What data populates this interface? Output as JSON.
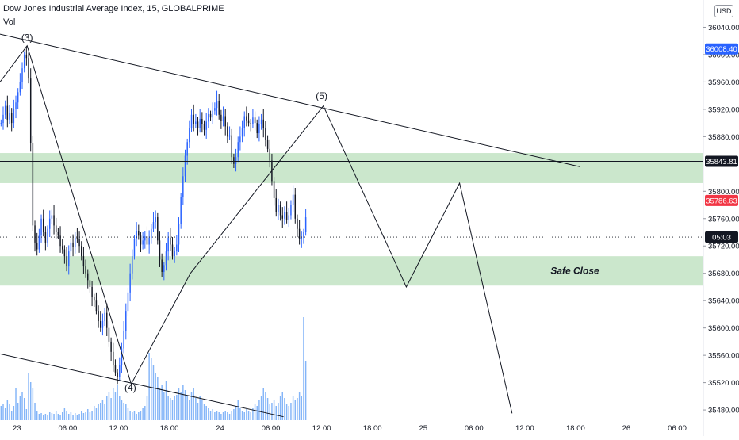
{
  "header": {
    "title": "Dow Jones Industrial Average Index, 15, GLOBALPRIME",
    "volume_label": "Vol",
    "currency_button": "USD"
  },
  "chart_data": {
    "type": "candlestick",
    "price_axis": {
      "ticks": [
        36040,
        36000,
        35960,
        35920,
        35880,
        35800,
        35760,
        35720,
        35680,
        35640,
        35600,
        35560,
        35520,
        35480
      ],
      "tick_labels": [
        "36040.00",
        "36000.00",
        "35960.00",
        "35920.00",
        "35880.00",
        "35800.00",
        "35760.00",
        "35720.00",
        "35680.00",
        "35640.00",
        "35600.00",
        "35560.00",
        "35520.00",
        "35480.00"
      ],
      "range": [
        35465,
        36080
      ]
    },
    "time_axis": {
      "labels": [
        "23",
        "06:00",
        "12:00",
        "18:00",
        "24",
        "06:00",
        "12:00",
        "18:00",
        "25",
        "06:00",
        "12:00",
        "18:00",
        "26",
        "06:00"
      ],
      "label_hours": [
        0,
        6,
        12,
        18,
        24,
        30,
        36,
        42,
        48,
        54,
        60,
        66,
        72,
        78
      ],
      "range_hours": [
        -2,
        81
      ]
    },
    "price_badges": [
      {
        "label": "36008.40",
        "price": 36008.4,
        "color": "#2962ff"
      },
      {
        "label": "35843.81",
        "price": 35843.81,
        "color": "#131722"
      },
      {
        "label": "35786.63",
        "price": 35786.63,
        "color": "#f23645"
      },
      {
        "label": "05:03",
        "price": 35733,
        "color": "#131722"
      }
    ],
    "horizontal_line": {
      "price": 35843.81
    },
    "dotted_line": {
      "price": 35733
    },
    "zones": [
      {
        "top": 35856,
        "bottom": 35812,
        "color": "#c8e6c9",
        "label": ""
      },
      {
        "top": 35705,
        "bottom": 35662,
        "color": "#c8e6c9",
        "label": "Safe Close"
      }
    ],
    "wave_labels": [
      {
        "text": "(3)",
        "hour": 1.2,
        "price": 36020
      },
      {
        "text": "(5)",
        "hour": 36.0,
        "price": 35935
      },
      {
        "text": "(4)",
        "hour": 13.4,
        "price": 35508
      }
    ],
    "trendlines": [
      {
        "points": [
          [
            -2,
            36030
          ],
          [
            66.5,
            35836
          ]
        ]
      },
      {
        "points": [
          [
            -2,
            35562
          ],
          [
            31.5,
            35470
          ]
        ]
      }
    ],
    "wave_path": {
      "points": [
        [
          -2,
          35960
        ],
        [
          1.2,
          36013
        ],
        [
          13.5,
          35518
        ],
        [
          20.5,
          35680
        ],
        [
          36.2,
          35925
        ],
        [
          44.0,
          35715
        ],
        [
          46.0,
          35660
        ],
        [
          52.3,
          35812
        ],
        [
          58.5,
          35475
        ]
      ]
    },
    "price_series": {
      "start_hour": -2,
      "step_hours": 0.25,
      "close": [
        35900,
        35912,
        35925,
        35905,
        35915,
        35900,
        35920,
        35930,
        35945,
        35960,
        35980,
        36000,
        35995,
        35965,
        35870,
        35750,
        35725,
        35715,
        35735,
        35760,
        35740,
        35725,
        35745,
        35760,
        35765,
        35750,
        35740,
        35735,
        35720,
        35715,
        35705,
        35690,
        35712,
        35725,
        35718,
        35732,
        35730,
        35720,
        35705,
        35690,
        35680,
        35670,
        35660,
        35645,
        35640,
        35625,
        35610,
        35600,
        35610,
        35622,
        35600,
        35580,
        35565,
        35545,
        35535,
        35528,
        35545,
        35570,
        35595,
        35625,
        35652,
        35680,
        35705,
        35730,
        35742,
        35735,
        35722,
        35728,
        35734,
        35722,
        35732,
        35745,
        35755,
        35762,
        35728,
        35700,
        35682,
        35692,
        35712,
        35732,
        35722,
        35705,
        35712,
        35722,
        35752,
        35792,
        35822,
        35852,
        35872,
        35892,
        35912,
        35898,
        35902,
        35893,
        35906,
        35898,
        35890,
        35902,
        35913,
        35908,
        35918,
        35922,
        35932,
        35912,
        35903,
        35910,
        35895,
        35880,
        35882,
        35850,
        35840,
        35850,
        35872,
        35880,
        35893,
        35910,
        35904,
        35900,
        35898,
        35908,
        35900,
        35885,
        35898,
        35905,
        35892,
        35875,
        35862,
        35845,
        35815,
        35790,
        35770,
        35780,
        35765,
        35760,
        35770,
        35758,
        35765,
        35780,
        35795,
        35760,
        35745,
        35730,
        35732,
        35740,
        35762
      ]
    },
    "volume_series": {
      "values": [
        18,
        20,
        15,
        25,
        20,
        12,
        18,
        40,
        22,
        30,
        35,
        28,
        14,
        60,
        48,
        40,
        22,
        12,
        8,
        9,
        6,
        8,
        7,
        10,
        9,
        8,
        12,
        8,
        7,
        10,
        15,
        12,
        8,
        10,
        6,
        9,
        7,
        8,
        12,
        9,
        10,
        14,
        10,
        12,
        18,
        15,
        20,
        22,
        25,
        20,
        30,
        35,
        28,
        40,
        35,
        45,
        30,
        25,
        22,
        20,
        15,
        12,
        10,
        12,
        8,
        10,
        12,
        15,
        18,
        30,
        85,
        78,
        70,
        60,
        55,
        40,
        45,
        35,
        50,
        30,
        28,
        25,
        30,
        32,
        40,
        35,
        45,
        38,
        30,
        25,
        35,
        40,
        28,
        22,
        30,
        25,
        20,
        18,
        15,
        12,
        14,
        10,
        12,
        10,
        8,
        10,
        12,
        10,
        8,
        12,
        14,
        18,
        25,
        15,
        12,
        10,
        14,
        12,
        10,
        15,
        20,
        18,
        25,
        30,
        40,
        35,
        28,
        20,
        22,
        25,
        18,
        22,
        30,
        35,
        28,
        20,
        18,
        22,
        30,
        25,
        28,
        35,
        30,
        130,
        75
      ]
    }
  }
}
